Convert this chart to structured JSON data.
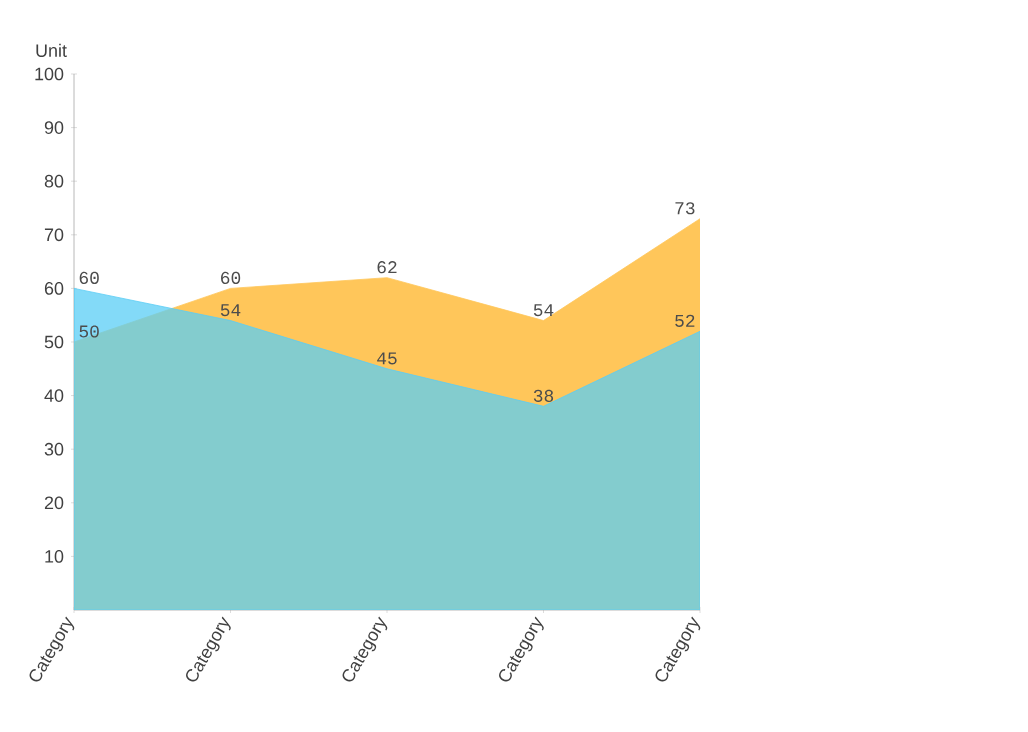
{
  "chart_data": {
    "type": "area",
    "ylabel": "Unit",
    "categories": [
      "Category",
      "Category",
      "Category",
      "Category",
      "Category"
    ],
    "series": [
      {
        "color": "#ffc65a",
        "values": [
          50,
          60,
          62,
          54,
          73
        ]
      },
      {
        "color": "#5acdf5",
        "values": [
          60,
          54,
          45,
          38,
          52
        ]
      }
    ],
    "ylim": [
      0,
      100
    ],
    "yticks": [
      10,
      20,
      30,
      40,
      50,
      60,
      70,
      80,
      90,
      100
    ],
    "data_labels": true,
    "grid": false
  }
}
